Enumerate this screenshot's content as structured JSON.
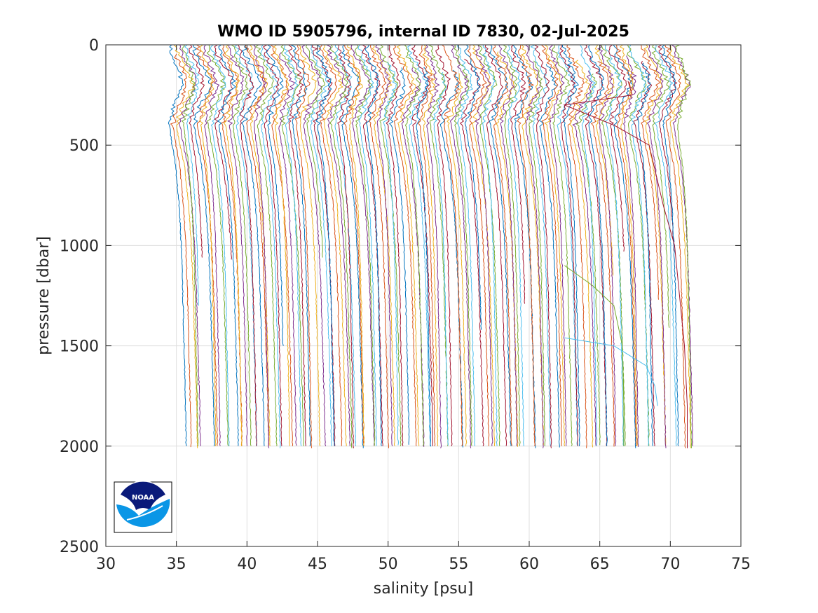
{
  "chart_data": {
    "type": "line",
    "title": "WMO ID 5905796, internal ID 7830, 02-Jul-2025",
    "xlabel": "salinity [psu]",
    "ylabel": "pressure [dbar]",
    "xlim": [
      30,
      75
    ],
    "ylim": [
      0,
      2500
    ],
    "y_reversed": true,
    "grid": true,
    "xticks": [
      30,
      35,
      40,
      45,
      50,
      55,
      60,
      65,
      70,
      75
    ],
    "yticks": [
      0,
      500,
      1000,
      1500,
      2000,
      2500
    ],
    "profile_offset_step_psu": 0.25,
    "profile_count": 145,
    "first_profile_offset_psu": 34.5,
    "colors": [
      "#0072BD",
      "#D95319",
      "#EDB120",
      "#7E2F8E",
      "#77AC30",
      "#4DBEEE",
      "#A2142F"
    ],
    "reference_profile": {
      "pressure": [
        0,
        50,
        100,
        150,
        200,
        250,
        300,
        400,
        500,
        600,
        800,
        1000,
        1200,
        1500,
        1800,
        2000
      ],
      "salinity_anomaly": [
        0.0,
        0.1,
        0.45,
        0.8,
        0.95,
        0.7,
        0.35,
        0.0,
        0.2,
        0.45,
        0.7,
        0.85,
        0.95,
        1.05,
        1.15,
        1.2
      ]
    },
    "example_profiles": [
      {
        "offset_psu": 34.5,
        "pressure": [
          0,
          100,
          200,
          300,
          400,
          500,
          700,
          1000
        ],
        "salinity": [
          34.5,
          34.6,
          35.1,
          34.8,
          34.5,
          34.6,
          34.8,
          34.9
        ]
      },
      {
        "offset_psu": 70.8,
        "pressure": [
          180,
          250,
          300,
          400,
          500,
          800,
          1000,
          1500,
          1800,
          2010
        ],
        "salinity": [
          67.0,
          67.3,
          62.5,
          66.0,
          68.5,
          69.5,
          70.3,
          71.0,
          71.2,
          71.2
        ]
      },
      {
        "offset_psu": 66.5,
        "pressure": [
          1100,
          1200,
          1300,
          1500,
          1800,
          2000
        ],
        "salinity": [
          62.5,
          64.5,
          66.0,
          66.6,
          66.7,
          66.7
        ]
      },
      {
        "offset_psu": 69.0,
        "pressure": [
          1460,
          1500,
          1600,
          1700,
          1800
        ],
        "salinity": [
          62.5,
          66.0,
          68.3,
          68.9,
          69.1
        ]
      }
    ]
  },
  "logo": {
    "text": "NOAA",
    "colors": {
      "navy": "#0a1a7a",
      "blue": "#0a96e6"
    }
  }
}
